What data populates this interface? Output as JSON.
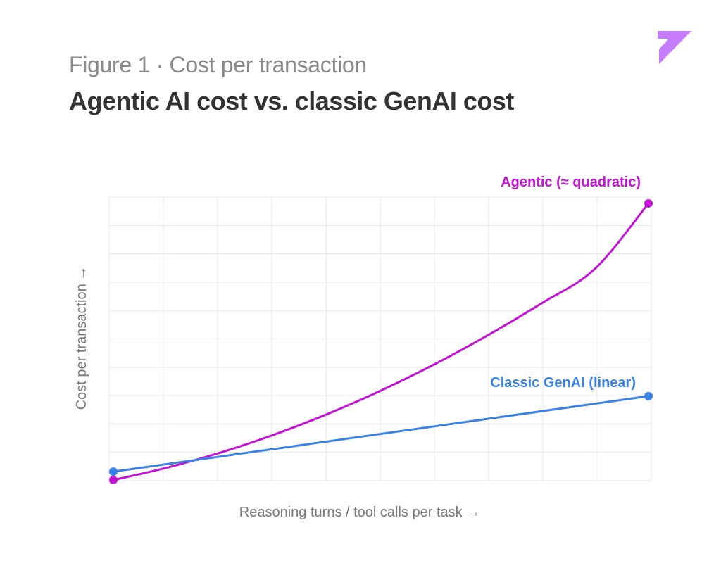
{
  "header": {
    "kicker": "Figure 1 · Cost per transaction",
    "title": "Agentic AI cost vs. classic GenAI cost"
  },
  "brand": {
    "logo_color": "#c77dff",
    "logo_icon": "chevron-logo-icon"
  },
  "chart_data": {
    "type": "line",
    "xlabel": "Reasoning turns / tool calls per task →",
    "ylabel": "Cost per transaction →",
    "xlim": [
      0,
      10
    ],
    "ylim": [
      0,
      10
    ],
    "grid": true,
    "axis_ticks_labeled": false,
    "series": [
      {
        "name": "Agentic (≈ quadratic)",
        "color": "#c314d6",
        "x": [
          0,
          1,
          2,
          3,
          4,
          5,
          6,
          7,
          8,
          9,
          10
        ],
        "y": [
          0.0,
          0.44,
          0.98,
          1.62,
          2.36,
          3.2,
          4.14,
          5.18,
          6.32,
          7.56,
          9.9
        ]
      },
      {
        "name": "Classic GenAI (linear)",
        "color": "#3b82e6",
        "x": [
          0,
          10
        ],
        "y": [
          0.3,
          3.0
        ]
      }
    ]
  }
}
